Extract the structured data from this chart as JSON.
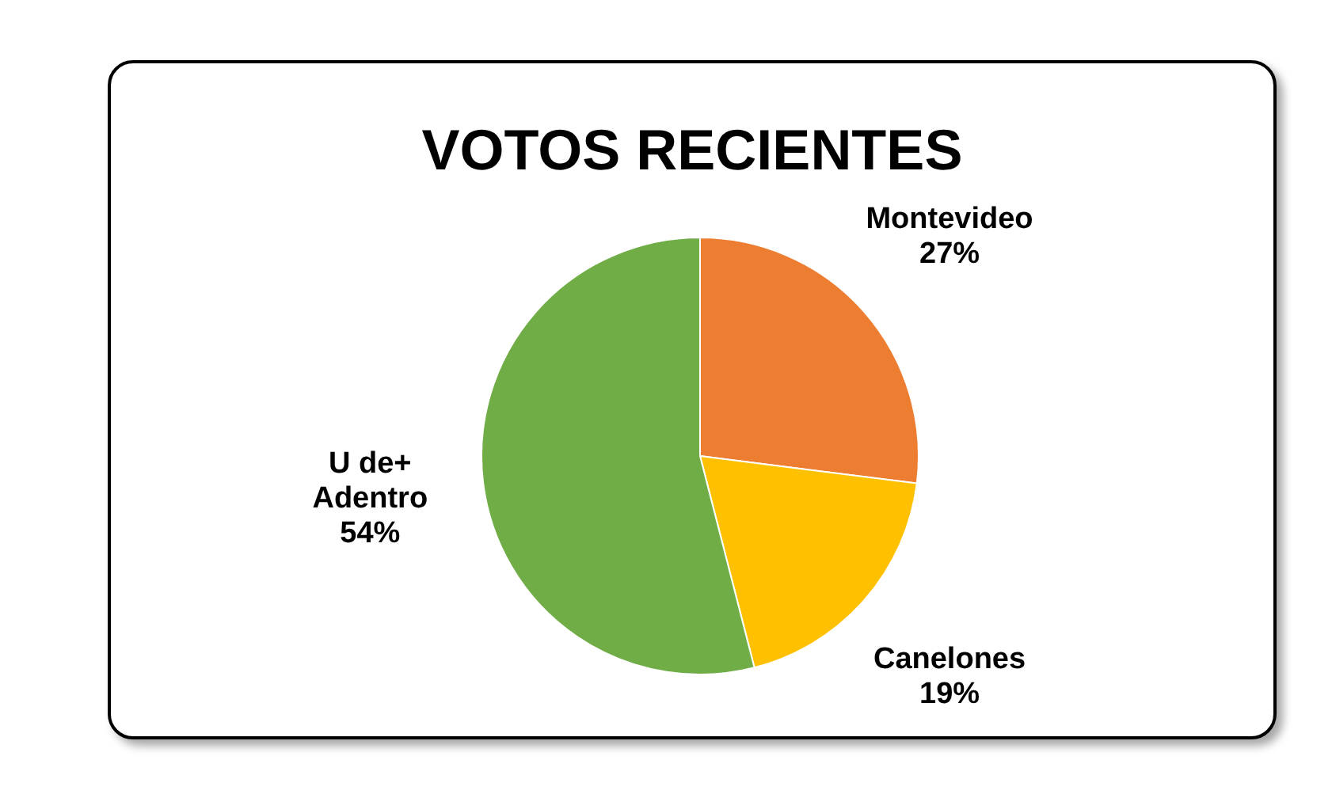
{
  "chart_data": {
    "type": "pie",
    "title": "VOTOS RECIENTES",
    "categories": [
      "Montevideo",
      "Canelones",
      "U de+ Adentro"
    ],
    "values": [
      27,
      19,
      54
    ],
    "colors": [
      "#ed7d31",
      "#ffc000",
      "#70ad47"
    ],
    "value_labels": [
      "27%",
      "19%",
      "54%"
    ],
    "legend": false
  }
}
